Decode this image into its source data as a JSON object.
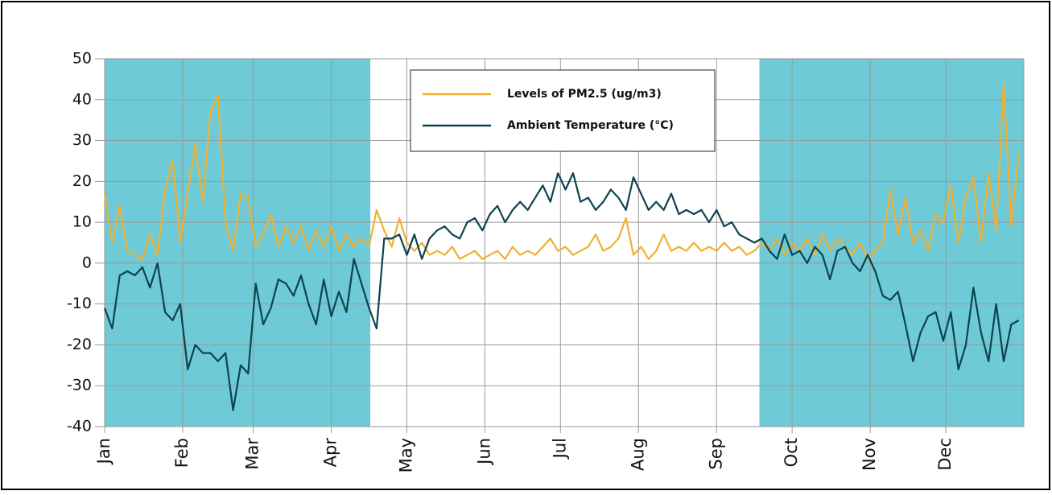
{
  "chart_data": {
    "type": "line",
    "x": [
      0,
      3,
      6,
      9,
      12,
      15,
      18,
      21,
      24,
      27,
      30,
      33,
      36,
      39,
      42,
      45,
      48,
      51,
      54,
      57,
      60,
      63,
      66,
      69,
      72,
      75,
      78,
      81,
      84,
      87,
      90,
      93,
      96,
      99,
      102,
      105,
      108,
      111,
      114,
      117,
      120,
      123,
      126,
      129,
      132,
      135,
      138,
      141,
      144,
      147,
      150,
      153,
      156,
      159,
      162,
      165,
      168,
      171,
      174,
      177,
      180,
      183,
      186,
      189,
      192,
      195,
      198,
      201,
      204,
      207,
      210,
      213,
      216,
      219,
      222,
      225,
      228,
      231,
      234,
      237,
      240,
      243,
      246,
      249,
      252,
      255,
      258,
      261,
      264,
      267,
      270,
      273,
      276,
      279,
      282,
      285,
      288,
      291,
      294,
      297,
      300,
      303,
      306,
      309,
      312,
      315,
      318,
      321,
      324,
      327,
      330,
      333,
      336,
      339,
      342,
      345,
      348,
      351,
      354,
      357,
      360,
      363
    ],
    "series": [
      {
        "name": "Levels of PM2.5 (ug/m3)",
        "color": "#f0b030",
        "values": [
          17,
          5,
          14,
          3,
          2,
          1,
          7,
          2,
          18,
          25,
          5,
          17,
          29,
          15,
          37,
          41,
          10,
          3,
          17,
          16,
          4,
          7,
          12,
          4,
          9,
          5,
          9,
          3,
          8,
          4,
          9,
          3,
          7,
          4,
          6,
          4,
          13,
          8,
          4,
          11,
          5,
          3,
          5,
          2,
          3,
          2,
          4,
          1,
          2,
          3,
          1,
          2,
          3,
          1,
          4,
          2,
          3,
          2,
          4,
          6,
          3,
          4,
          2,
          3,
          4,
          7,
          3,
          4,
          6,
          11,
          2,
          4,
          1,
          3,
          7,
          3,
          4,
          3,
          5,
          3,
          4,
          3,
          5,
          3,
          4,
          2,
          3,
          5,
          3,
          6,
          2,
          5,
          3,
          6,
          2,
          7,
          3,
          6,
          4,
          2,
          5,
          1,
          3,
          5,
          18,
          7,
          16,
          5,
          8,
          3,
          12,
          10,
          19,
          5,
          16,
          21,
          5,
          22,
          8,
          44,
          9,
          27
        ]
      },
      {
        "name": "Ambient Temperature (°C)",
        "color": "#0d4350",
        "values": [
          -11,
          -16,
          -3,
          -2,
          -3,
          -1,
          -6,
          0,
          -12,
          -14,
          -10,
          -26,
          -20,
          -22,
          -22,
          -24,
          -22,
          -36,
          -25,
          -27,
          -5,
          -15,
          -11,
          -4,
          -5,
          -8,
          -3,
          -10,
          -15,
          -4,
          -13,
          -7,
          -12,
          1,
          -5,
          -11,
          -16,
          6,
          6,
          7,
          2,
          7,
          1,
          6,
          8,
          9,
          7,
          6,
          10,
          11,
          8,
          12,
          14,
          10,
          13,
          15,
          13,
          16,
          19,
          15,
          22,
          18,
          22,
          15,
          16,
          13,
          15,
          18,
          16,
          13,
          21,
          17,
          13,
          15,
          13,
          17,
          12,
          13,
          12,
          13,
          10,
          13,
          9,
          10,
          7,
          6,
          5,
          6,
          3,
          1,
          7,
          2,
          3,
          0,
          4,
          2,
          -4,
          3,
          4,
          0,
          -2,
          2,
          -2,
          -8,
          -9,
          -7,
          -15,
          -24,
          -17,
          -13,
          -12,
          -19,
          -12,
          -26,
          -20,
          -6,
          -17,
          -24,
          -10,
          -24,
          -15,
          -14
        ]
      }
    ],
    "xlim": [
      0,
      365
    ],
    "xticks": [
      {
        "value": 0,
        "label": "Jan"
      },
      {
        "value": 31,
        "label": "Feb"
      },
      {
        "value": 59,
        "label": "Mar"
      },
      {
        "value": 90,
        "label": "Apr"
      },
      {
        "value": 120,
        "label": "May"
      },
      {
        "value": 151,
        "label": "Jun"
      },
      {
        "value": 181,
        "label": "Jul"
      },
      {
        "value": 212,
        "label": "Aug"
      },
      {
        "value": 243,
        "label": "Sep"
      },
      {
        "value": 273,
        "label": "Oct"
      },
      {
        "value": 304,
        "label": "Nov"
      },
      {
        "value": 334,
        "label": "Dec"
      }
    ],
    "ylim": [
      -40,
      50
    ],
    "yticks": [
      -40,
      -30,
      -20,
      -10,
      0,
      10,
      20,
      30,
      40,
      50
    ],
    "grid": true,
    "shaded_ranges": [
      [
        0,
        105.5
      ],
      [
        260,
        365
      ]
    ],
    "shade_color": "#6ecad6",
    "legend_position": "top-center"
  }
}
